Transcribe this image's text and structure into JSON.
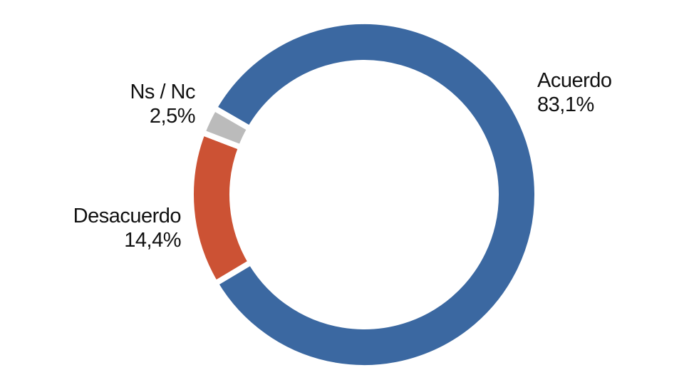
{
  "chart_data": {
    "type": "pie",
    "variant": "donut",
    "title": "",
    "categories": [
      "Acuerdo",
      "Desacuerdo",
      "Ns / Nc"
    ],
    "values": [
      83.1,
      14.4,
      2.5
    ],
    "value_labels": [
      "83,1%",
      "14,4%",
      "2,5%"
    ],
    "colors": [
      "#3B68A1",
      "#CC5234",
      "#BBBBBB"
    ],
    "legend": "none"
  }
}
